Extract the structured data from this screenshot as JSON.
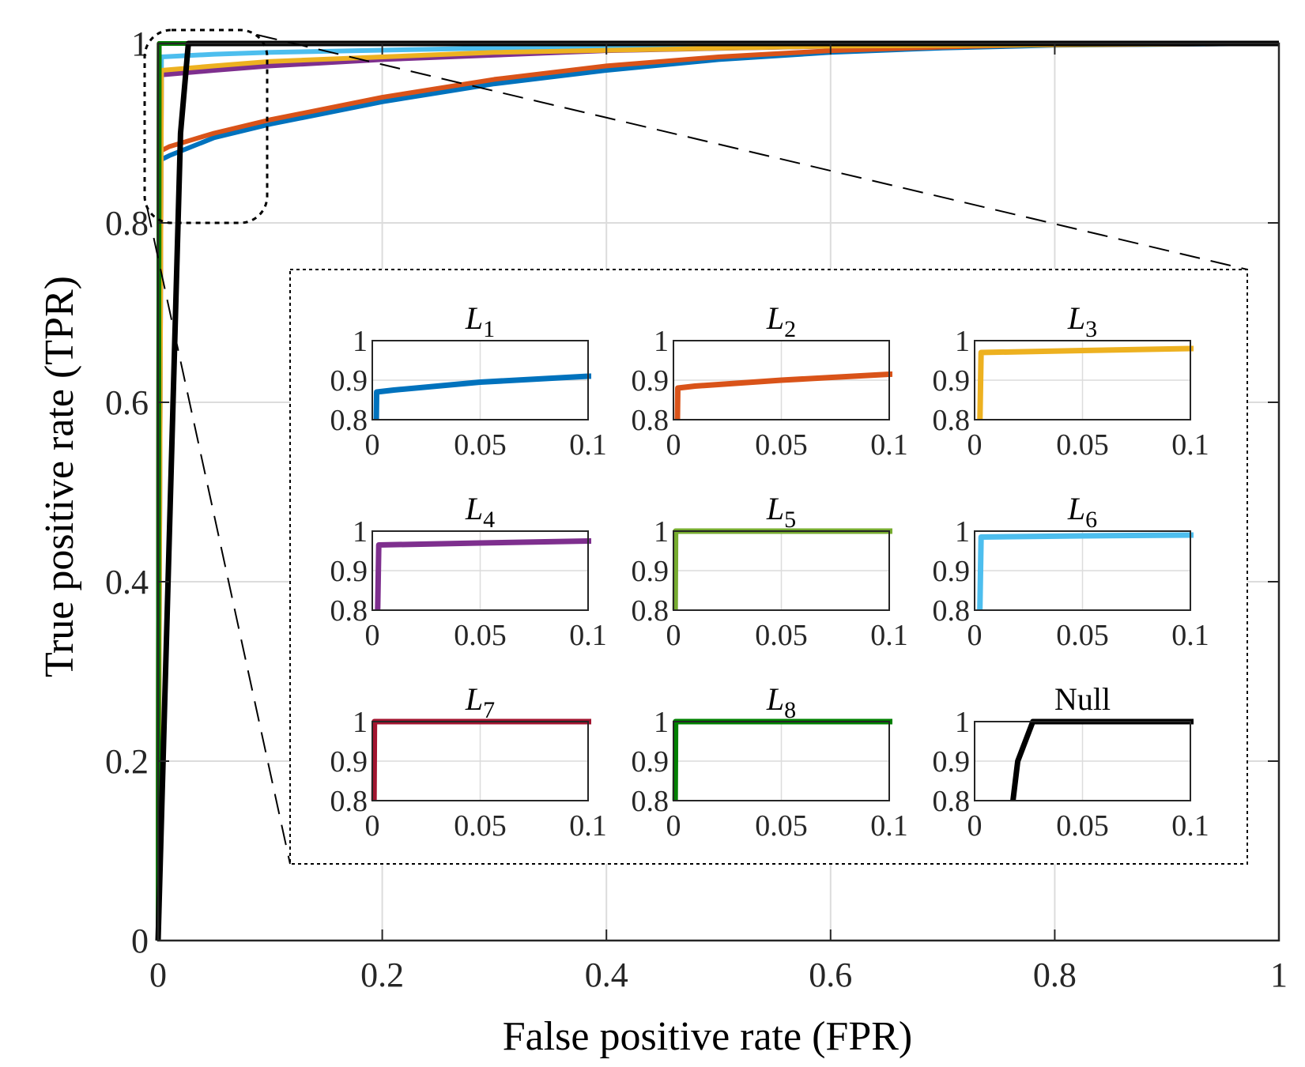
{
  "chart_data": {
    "type": "line",
    "title": "",
    "xlabel": "False positive rate (FPR)",
    "ylabel": "True positive rate (TPR)",
    "xlim": [
      0,
      1
    ],
    "ylim": [
      0,
      1
    ],
    "grid": true,
    "xticks": [
      "0",
      "0.2",
      "0.4",
      "0.6",
      "0.8",
      "1"
    ],
    "yticks": [
      "0",
      "0.2",
      "0.4",
      "0.6",
      "0.8",
      "1"
    ],
    "series": [
      {
        "name": "L1",
        "color": "#0072BD",
        "points": [
          [
            0,
            0
          ],
          [
            0.002,
            0.87
          ],
          [
            0.01,
            0.875
          ],
          [
            0.05,
            0.895
          ],
          [
            0.1,
            0.91
          ],
          [
            0.2,
            0.935
          ],
          [
            0.3,
            0.955
          ],
          [
            0.4,
            0.97
          ],
          [
            0.5,
            0.982
          ],
          [
            0.6,
            0.99
          ],
          [
            0.7,
            0.995
          ],
          [
            0.8,
            0.998
          ],
          [
            1,
            1
          ]
        ]
      },
      {
        "name": "L2",
        "color": "#D95319",
        "points": [
          [
            0,
            0
          ],
          [
            0.002,
            0.88
          ],
          [
            0.01,
            0.885
          ],
          [
            0.05,
            0.9
          ],
          [
            0.1,
            0.915
          ],
          [
            0.2,
            0.94
          ],
          [
            0.3,
            0.96
          ],
          [
            0.4,
            0.975
          ],
          [
            0.5,
            0.985
          ],
          [
            0.6,
            0.992
          ],
          [
            0.7,
            0.996
          ],
          [
            0.8,
            0.999
          ],
          [
            1,
            1
          ]
        ]
      },
      {
        "name": "L3",
        "color": "#EDB120",
        "points": [
          [
            0,
            0
          ],
          [
            0.003,
            0.97
          ],
          [
            0.05,
            0.975
          ],
          [
            0.1,
            0.98
          ],
          [
            0.3,
            0.99
          ],
          [
            0.6,
            0.997
          ],
          [
            1,
            1
          ]
        ]
      },
      {
        "name": "L4",
        "color": "#7E2F8E",
        "points": [
          [
            0,
            0
          ],
          [
            0.003,
            0.965
          ],
          [
            0.05,
            0.97
          ],
          [
            0.1,
            0.975
          ],
          [
            0.2,
            0.982
          ],
          [
            0.4,
            0.992
          ],
          [
            0.6,
            0.997
          ],
          [
            1,
            1
          ]
        ]
      },
      {
        "name": "L5",
        "color": "#77AC30",
        "points": [
          [
            0,
            0
          ],
          [
            0.001,
            1
          ],
          [
            1,
            1
          ]
        ]
      },
      {
        "name": "L6",
        "color": "#4DBEEE",
        "points": [
          [
            0,
            0
          ],
          [
            0.003,
            0.985
          ],
          [
            0.05,
            0.988
          ],
          [
            0.1,
            0.99
          ],
          [
            0.3,
            0.995
          ],
          [
            0.6,
            0.998
          ],
          [
            1,
            1
          ]
        ]
      },
      {
        "name": "L7",
        "color": "#A2142F",
        "points": [
          [
            0,
            0
          ],
          [
            0.001,
            1
          ],
          [
            1,
            1
          ]
        ]
      },
      {
        "name": "L8",
        "color": "#008000",
        "points": [
          [
            0,
            0
          ],
          [
            0.001,
            1
          ],
          [
            1,
            1
          ]
        ]
      },
      {
        "name": "Null",
        "color": "#000000",
        "points": [
          [
            0,
            0
          ],
          [
            0.02,
            0.9
          ],
          [
            0.027,
            1
          ],
          [
            1,
            1
          ]
        ]
      }
    ],
    "inset": {
      "xlim": [
        0,
        0.1
      ],
      "ylim": [
        0.8,
        1
      ],
      "xticks": [
        "0",
        "0.05",
        "0.1"
      ],
      "yticks": [
        "0.8",
        "0.9",
        "1"
      ],
      "panels": [
        {
          "series": "L1",
          "base": "L",
          "sub": "1"
        },
        {
          "series": "L2",
          "base": "L",
          "sub": "2"
        },
        {
          "series": "L3",
          "base": "L",
          "sub": "3"
        },
        {
          "series": "L4",
          "base": "L",
          "sub": "4"
        },
        {
          "series": "L5",
          "base": "L",
          "sub": "5"
        },
        {
          "series": "L6",
          "base": "L",
          "sub": "6"
        },
        {
          "series": "L7",
          "base": "L",
          "sub": "7"
        },
        {
          "series": "L8",
          "base": "L",
          "sub": "8"
        },
        {
          "series": "Null",
          "base": "Null",
          "sub": ""
        }
      ]
    }
  }
}
